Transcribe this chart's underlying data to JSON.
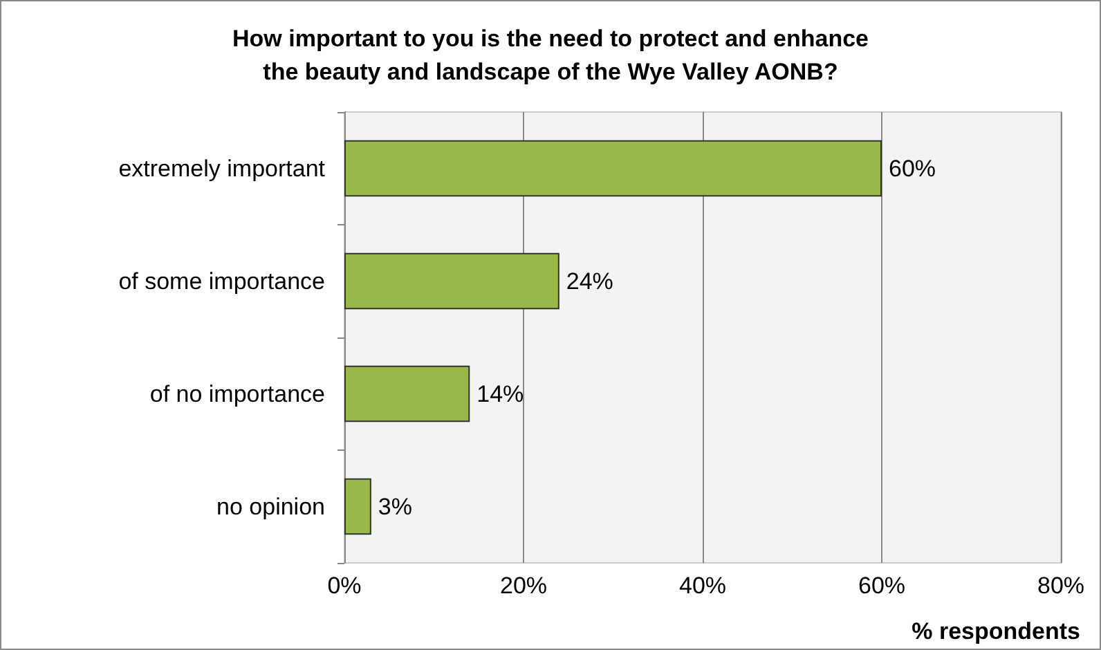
{
  "chart_data": {
    "type": "bar",
    "orientation": "horizontal",
    "title": "How important to you is the need to protect and enhance\nthe beauty and landscape of the Wye Valley AONB?",
    "categories": [
      "extremely important",
      "of some importance",
      "of no importance",
      "no opinion"
    ],
    "values": [
      60,
      24,
      14,
      3
    ],
    "value_labels": [
      "60%",
      "24%",
      "14%",
      "3%"
    ],
    "color": "#98b84a",
    "xlim": [
      0,
      80
    ],
    "xticks": [
      {
        "value": 0,
        "label": "0%"
      },
      {
        "value": 20,
        "label": "20%"
      },
      {
        "value": 40,
        "label": "40%"
      },
      {
        "value": 60,
        "label": "60%"
      },
      {
        "value": 80,
        "label": "80%"
      }
    ],
    "xlabel": "% respondents",
    "grid": "x"
  }
}
